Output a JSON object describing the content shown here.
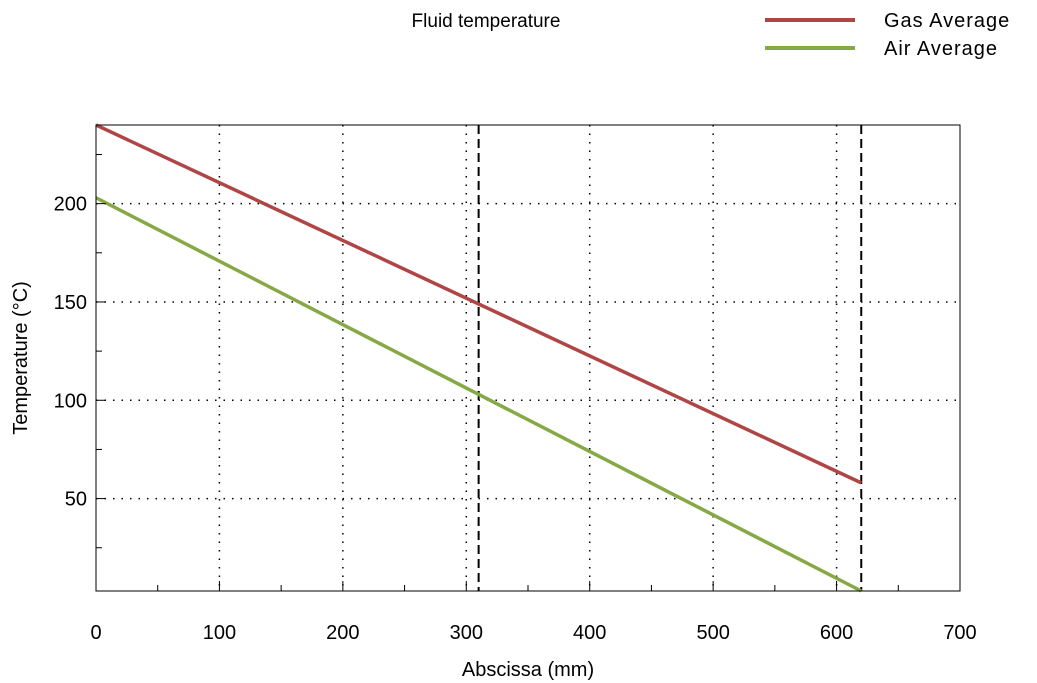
{
  "chart_data": {
    "type": "line",
    "title": "Fluid temperature",
    "xlabel": "Abscissa (mm)",
    "ylabel": "Temperature (°C)",
    "xlim": [
      0,
      700
    ],
    "ylim": [
      3,
      240
    ],
    "x_ticks": [
      0,
      100,
      200,
      300,
      400,
      500,
      600,
      700
    ],
    "y_ticks": [
      50,
      100,
      150,
      200
    ],
    "grid": "dotted",
    "legend_position": "top-right",
    "reference_lines_x": [
      310,
      620
    ],
    "series": [
      {
        "name": "Gas Average",
        "color": "#b04545",
        "x": [
          0,
          620
        ],
        "y": [
          240,
          58
        ]
      },
      {
        "name": "Air Average",
        "color": "#86a845",
        "x": [
          0,
          620
        ],
        "y": [
          203,
          3
        ]
      }
    ]
  }
}
